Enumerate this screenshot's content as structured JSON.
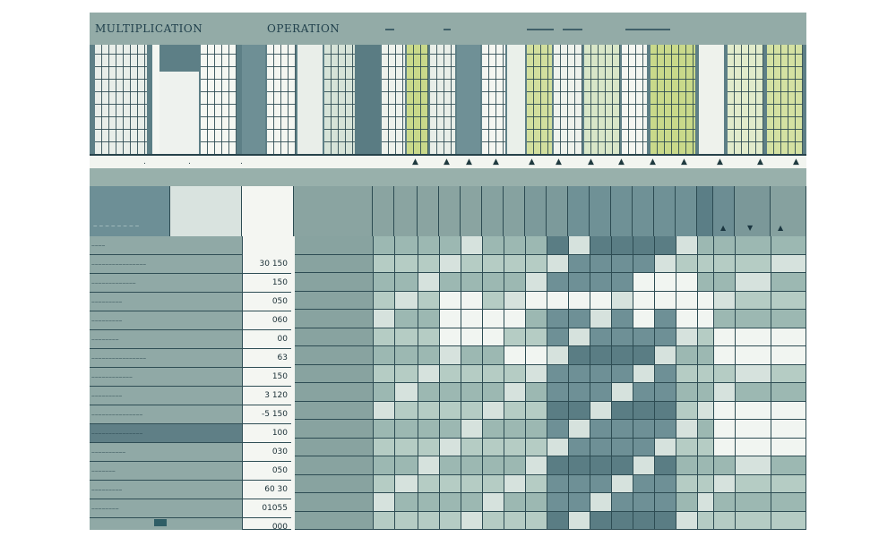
{
  "header": {
    "title_left": "MULTIPLICATION",
    "title_center": "OPERATION"
  },
  "colors": {
    "canvas": "#8fa8a4",
    "dark_grid": "#2c4b52",
    "light_cell": "#f4f6f2",
    "accent_green": "#c9d98a"
  },
  "table": {
    "values": [
      "30 150",
      "150",
      "050",
      "060",
      "00",
      "63",
      "150",
      "3 120",
      "-5 150",
      "100",
      "030",
      "050",
      "60 30",
      "01055",
      "000"
    ]
  }
}
